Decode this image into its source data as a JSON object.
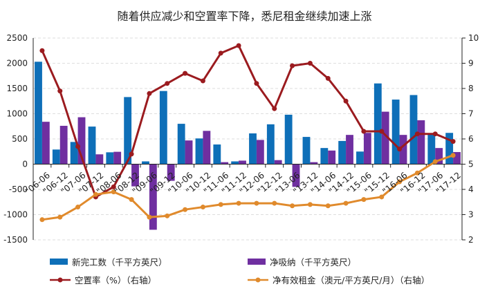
{
  "chart_data": {
    "type": "bar+line",
    "title": "随着供应减少和空置率下降，悉尼租金继续加速上涨",
    "categories": [
      "\"06-06",
      "\"06-12",
      "\"07-06",
      "\"07-12",
      "\"08-06",
      "\"08-12",
      "\"09-06",
      "\"09-12",
      "\"10-06",
      "\"10-12",
      "\"11-06",
      "\"11-12",
      "\"12-06",
      "\"12-12",
      "\"13-06",
      "\"13-12",
      "\"14-06",
      "\"14-12",
      "\"15-06",
      "\"15-12",
      "\"16-06",
      "\"16-12",
      "\"17-06",
      "\"17-12"
    ],
    "left_axis": {
      "ylim": [
        -1500,
        2500
      ],
      "ticks": [
        "-1500",
        "-1000",
        "-500",
        "0",
        "500",
        "1000",
        "1500",
        "2000",
        "2500"
      ]
    },
    "right_axis": {
      "ylim": [
        2,
        10
      ],
      "ticks": [
        "2",
        "3",
        "4",
        "5",
        "6",
        "7",
        "8",
        "9",
        "10"
      ]
    },
    "series": [
      {
        "name": "新完工数（千平方英尺）",
        "type": "bar",
        "axis": "left",
        "color": "#0e6fb8",
        "values": [
          2030,
          290,
          440,
          745,
          235,
          1330,
          55,
          1450,
          800,
          510,
          390,
          55,
          610,
          790,
          980,
          540,
          320,
          460,
          250,
          1600,
          1280,
          1370,
          600,
          620
        ]
      },
      {
        "name": "净吸纳（千平方英尺）",
        "type": "bar",
        "axis": "left",
        "color": "#6f2fa0",
        "values": [
          840,
          760,
          930,
          195,
          245,
          -440,
          -1300,
          -330,
          470,
          660,
          40,
          70,
          480,
          80,
          -450,
          40,
          270,
          580,
          620,
          1040,
          580,
          870,
          320,
          240
        ]
      },
      {
        "name": "空置率（%）（右轴）",
        "type": "line",
        "axis": "right",
        "color": "#9b1b1f",
        "values": [
          9.5,
          7.9,
          5.7,
          3.7,
          4.1,
          5.4,
          7.8,
          8.2,
          8.6,
          8.3,
          9.4,
          9.7,
          8.2,
          7.2,
          8.9,
          9.0,
          8.4,
          7.5,
          6.3,
          6.3,
          5.6,
          6.2,
          6.2,
          5.9
        ]
      },
      {
        "name": "净有效租金（澳元/平方英尺/月）（右轴）",
        "type": "line",
        "axis": "right",
        "color": "#e08a2c",
        "values": [
          2.8,
          2.9,
          3.3,
          3.8,
          3.9,
          3.6,
          2.9,
          2.95,
          3.2,
          3.3,
          3.4,
          3.45,
          3.45,
          3.45,
          3.35,
          3.4,
          3.35,
          3.45,
          3.6,
          3.7,
          4.3,
          4.65,
          5.1,
          5.35
        ]
      }
    ],
    "grid": true,
    "legend": "bottom"
  }
}
